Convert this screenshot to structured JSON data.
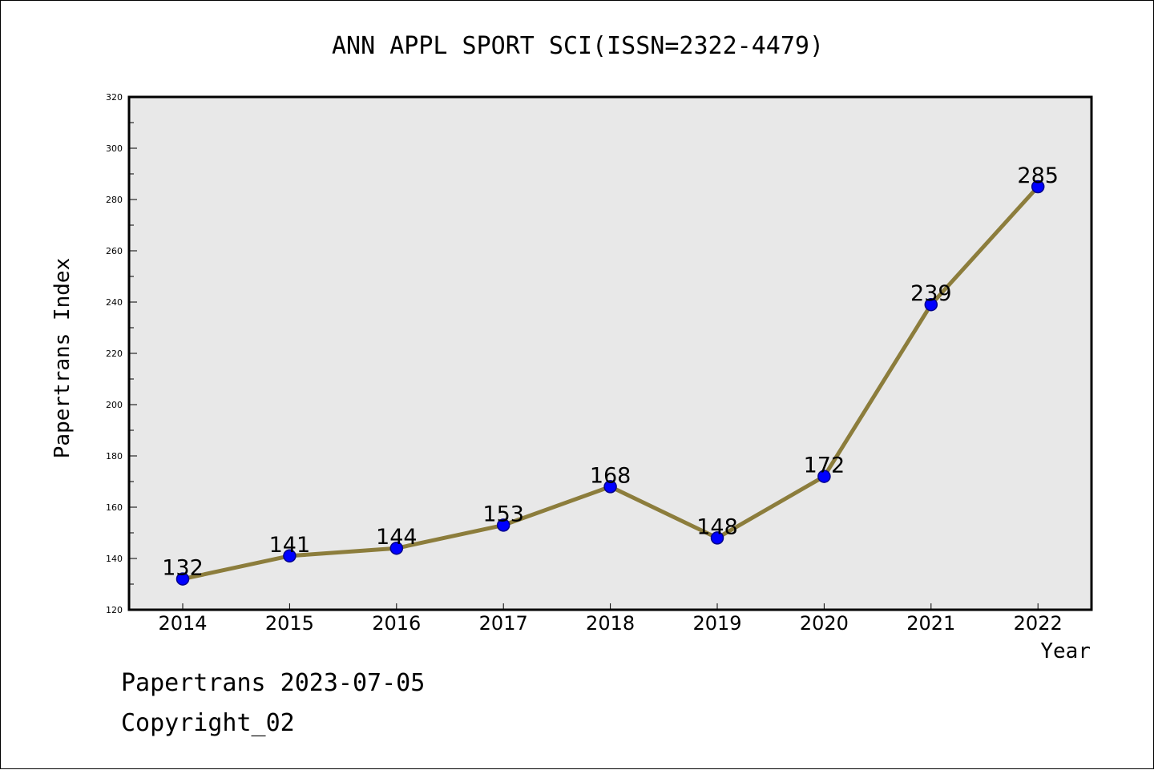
{
  "chart_data": {
    "type": "line",
    "title": "ANN APPL SPORT SCI(ISSN=2322-4479)",
    "xlabel": "Year",
    "ylabel": "Papertrans Index",
    "categories": [
      "2014",
      "2015",
      "2016",
      "2017",
      "2018",
      "2019",
      "2020",
      "2021",
      "2022"
    ],
    "series": [
      {
        "values": [
          132,
          141,
          144,
          153,
          168,
          148,
          172,
          239,
          285
        ]
      }
    ],
    "data_labels": [
      "132",
      "141",
      "144",
      "153",
      "168",
      "148",
      "172",
      "239",
      "285"
    ],
    "ylim": [
      120,
      320
    ],
    "yticks": [
      120,
      140,
      160,
      180,
      200,
      220,
      240,
      260,
      280,
      300,
      320
    ],
    "grid": false,
    "legend": "none",
    "colors": {
      "line": "#8c7d3c",
      "marker_fill": "#0000ff",
      "marker_edge": "#00008b",
      "plot_background": "#e8e8e8"
    }
  },
  "footer": {
    "line1": "Papertrans 2023-07-05",
    "line2": "Copyright_02"
  }
}
